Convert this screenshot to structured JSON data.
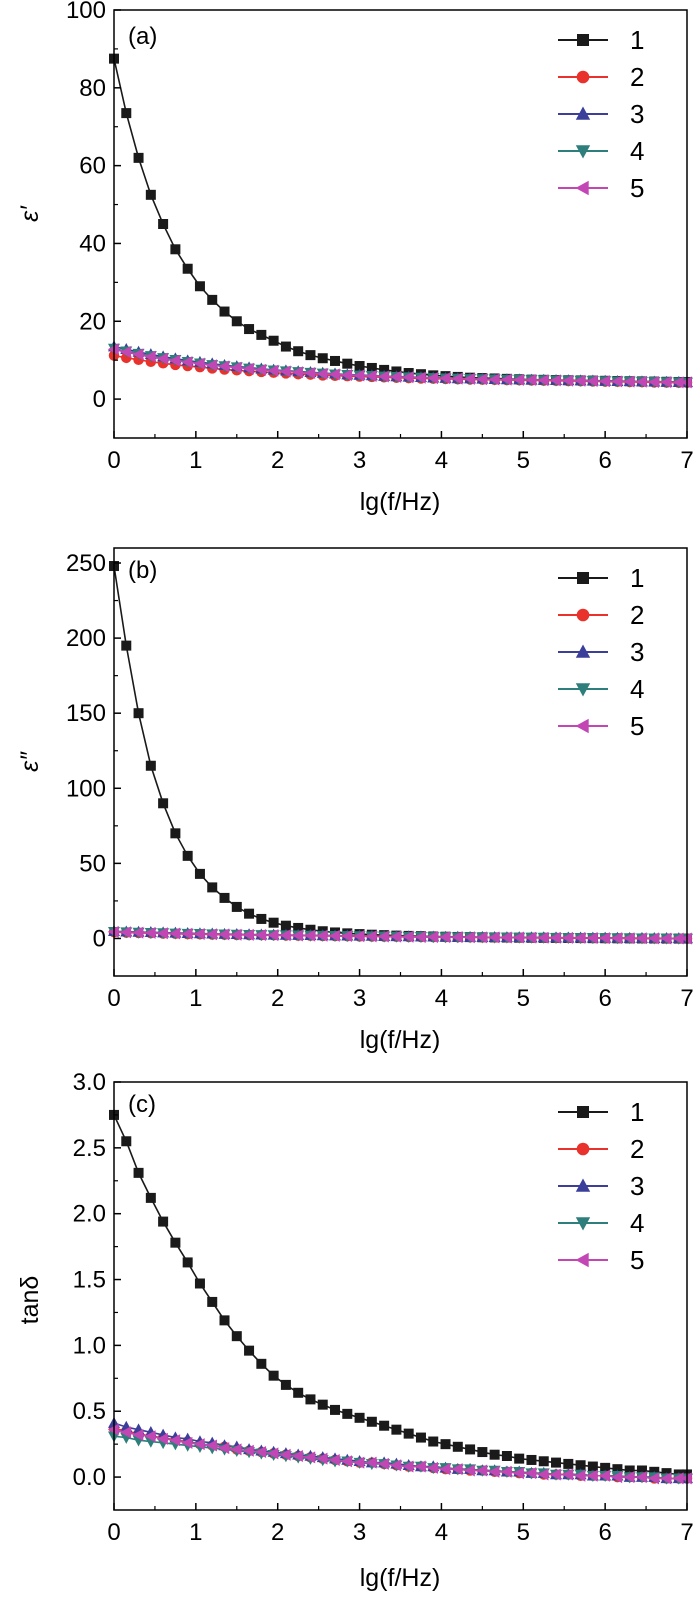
{
  "chart_data": [
    {
      "type": "line",
      "panel": "(a)",
      "xlabel": "lg(f/Hz)",
      "ylabel": "ε′",
      "xlim": [
        0,
        7
      ],
      "ylim": [
        -10,
        100
      ],
      "xticks": [
        0,
        1,
        2,
        3,
        4,
        5,
        6,
        7
      ],
      "yticks": [
        0,
        20,
        40,
        60,
        80,
        100
      ],
      "x": [
        0,
        0.15,
        0.3,
        0.45,
        0.6,
        0.75,
        0.9,
        1.05,
        1.2,
        1.35,
        1.5,
        1.65,
        1.8,
        1.95,
        2.1,
        2.25,
        2.4,
        2.55,
        2.7,
        2.85,
        3.0,
        3.15,
        3.3,
        3.45,
        3.6,
        3.75,
        3.9,
        4.05,
        4.2,
        4.35,
        4.5,
        4.65,
        4.8,
        4.95,
        5.1,
        5.25,
        5.4,
        5.55,
        5.7,
        5.85,
        6.0,
        6.15,
        6.3,
        6.45,
        6.6,
        6.75,
        6.9,
        7.0
      ],
      "legend": [
        "1",
        "2",
        "3",
        "4",
        "5"
      ],
      "series": [
        {
          "name": "1",
          "marker": "square",
          "color": "#1a1a1a",
          "values": [
            87.5,
            73.5,
            62,
            52.5,
            45,
            38.5,
            33.5,
            29,
            25.5,
            22.5,
            20,
            18,
            16.5,
            15,
            13.5,
            12.3,
            11.3,
            10.5,
            9.8,
            9.1,
            8.5,
            8,
            7.5,
            7.1,
            6.7,
            6.4,
            6.1,
            5.9,
            5.7,
            5.5,
            5.4,
            5.3,
            5.2,
            5.1,
            5,
            4.95,
            4.9,
            4.85,
            4.8,
            4.75,
            4.7,
            4.65,
            4.6,
            4.55,
            4.5,
            4.45,
            4.4,
            4.4
          ]
        },
        {
          "name": "2",
          "marker": "circle",
          "color": "#e8322b",
          "values": [
            11.2,
            10.6,
            10.1,
            9.6,
            9.2,
            8.8,
            8.5,
            8.2,
            7.9,
            7.6,
            7.4,
            7.2,
            7,
            6.8,
            6.6,
            6.4,
            6.3,
            6.1,
            6,
            5.9,
            5.8,
            5.7,
            5.6,
            5.5,
            5.4,
            5.3,
            5.25,
            5.2,
            5.1,
            5.05,
            5,
            4.95,
            4.9,
            4.85,
            4.8,
            4.75,
            4.7,
            4.65,
            4.6,
            4.55,
            4.5,
            4.45,
            4.4,
            4.35,
            4.3,
            4.25,
            4.2,
            4.2
          ]
        },
        {
          "name": "3",
          "marker": "triangle-up",
          "color": "#3b3f9a",
          "values": [
            13.5,
            12.8,
            12.1,
            11.5,
            10.9,
            10.4,
            9.9,
            9.5,
            9.1,
            8.7,
            8.4,
            8.1,
            7.8,
            7.5,
            7.3,
            7.1,
            6.9,
            6.7,
            6.5,
            6.3,
            6.2,
            6.05,
            5.9,
            5.8,
            5.7,
            5.6,
            5.5,
            5.4,
            5.3,
            5.25,
            5.2,
            5.1,
            5.05,
            5,
            4.95,
            4.9,
            4.85,
            4.8,
            4.75,
            4.7,
            4.65,
            4.6,
            4.55,
            4.5,
            4.45,
            4.4,
            4.35,
            4.3
          ]
        },
        {
          "name": "4",
          "marker": "triangle-down",
          "color": "#2e7f7b",
          "values": [
            13,
            12.3,
            11.7,
            11.1,
            10.6,
            10.1,
            9.6,
            9.2,
            8.8,
            8.5,
            8.2,
            7.9,
            7.6,
            7.4,
            7.2,
            7,
            6.8,
            6.6,
            6.4,
            6.25,
            6.1,
            6,
            5.85,
            5.75,
            5.65,
            5.55,
            5.45,
            5.35,
            5.3,
            5.2,
            5.15,
            5.1,
            5.05,
            5,
            4.95,
            4.9,
            4.85,
            4.8,
            4.75,
            4.7,
            4.65,
            4.6,
            4.55,
            4.5,
            4.45,
            4.4,
            4.35,
            4.3
          ]
        },
        {
          "name": "5",
          "marker": "triangle-left",
          "color": "#c246b4",
          "values": [
            12.8,
            12.1,
            11.5,
            10.9,
            10.4,
            9.9,
            9.5,
            9.1,
            8.7,
            8.4,
            8.1,
            7.8,
            7.5,
            7.3,
            7.1,
            6.9,
            6.7,
            6.5,
            6.35,
            6.2,
            6.05,
            5.95,
            5.8,
            5.7,
            5.6,
            5.5,
            5.4,
            5.35,
            5.25,
            5.2,
            5.1,
            5.05,
            5,
            4.95,
            4.9,
            4.85,
            4.8,
            4.75,
            4.7,
            4.65,
            4.6,
            4.55,
            4.5,
            4.45,
            4.4,
            4.35,
            4.3,
            4.3
          ]
        }
      ]
    },
    {
      "type": "line",
      "panel": "(b)",
      "xlabel": "lg(f/Hz)",
      "ylabel": "ε″",
      "xlim": [
        0,
        7
      ],
      "ylim": [
        -25,
        260
      ],
      "xticks": [
        0,
        1,
        2,
        3,
        4,
        5,
        6,
        7
      ],
      "yticks": [
        0,
        50,
        100,
        150,
        200,
        250
      ],
      "x": [
        0,
        0.15,
        0.3,
        0.45,
        0.6,
        0.75,
        0.9,
        1.05,
        1.2,
        1.35,
        1.5,
        1.65,
        1.8,
        1.95,
        2.1,
        2.25,
        2.4,
        2.55,
        2.7,
        2.85,
        3.0,
        3.15,
        3.3,
        3.45,
        3.6,
        3.75,
        3.9,
        4.05,
        4.2,
        4.35,
        4.5,
        4.65,
        4.8,
        4.95,
        5.1,
        5.25,
        5.4,
        5.55,
        5.7,
        5.85,
        6.0,
        6.15,
        6.3,
        6.45,
        6.6,
        6.75,
        6.9,
        7.0
      ],
      "legend": [
        "1",
        "2",
        "3",
        "4",
        "5"
      ],
      "series": [
        {
          "name": "1",
          "marker": "square",
          "color": "#1a1a1a",
          "values": [
            248,
            195,
            150,
            115,
            90,
            70,
            55,
            43,
            34,
            27,
            21,
            16.5,
            13,
            10.5,
            8.5,
            7,
            5.8,
            4.8,
            4,
            3.4,
            2.9,
            2.5,
            2.2,
            1.9,
            1.7,
            1.5,
            1.3,
            1.15,
            1,
            0.9,
            0.8,
            0.7,
            0.6,
            0.5,
            0.45,
            0.4,
            0.35,
            0.3,
            0.25,
            0.2,
            0.15,
            0.1,
            0.05,
            0,
            -0.05,
            -0.1,
            -0.1,
            -0.1
          ]
        },
        {
          "name": "2",
          "marker": "circle",
          "color": "#e8322b",
          "values": [
            4.2,
            3.9,
            3.7,
            3.5,
            3.3,
            3.1,
            2.9,
            2.8,
            2.6,
            2.5,
            2.4,
            2.3,
            2.2,
            2.1,
            2,
            1.9,
            1.8,
            1.7,
            1.6,
            1.5,
            1.4,
            1.3,
            1.2,
            1.1,
            1,
            0.95,
            0.9,
            0.85,
            0.8,
            0.75,
            0.7,
            0.65,
            0.6,
            0.55,
            0.5,
            0.45,
            0.4,
            0.35,
            0.3,
            0.25,
            0.2,
            0.15,
            0.1,
            0.05,
            0,
            -0.05,
            -0.1,
            -0.1
          ]
        },
        {
          "name": "3",
          "marker": "triangle-up",
          "color": "#3b3f9a",
          "values": [
            4.8,
            4.5,
            4.3,
            4.1,
            3.9,
            3.7,
            3.5,
            3.3,
            3.1,
            2.9,
            2.8,
            2.6,
            2.5,
            2.4,
            2.3,
            2.2,
            2.1,
            2,
            1.9,
            1.8,
            1.7,
            1.6,
            1.5,
            1.4,
            1.3,
            1.2,
            1.1,
            1,
            0.95,
            0.9,
            0.85,
            0.8,
            0.75,
            0.7,
            0.65,
            0.6,
            0.55,
            0.5,
            0.45,
            0.4,
            0.35,
            0.3,
            0.25,
            0.2,
            0.15,
            0.1,
            0.05,
            0
          ]
        },
        {
          "name": "4",
          "marker": "triangle-down",
          "color": "#2e7f7b",
          "values": [
            4.5,
            4.2,
            4,
            3.8,
            3.6,
            3.4,
            3.2,
            3.1,
            2.9,
            2.8,
            2.6,
            2.5,
            2.4,
            2.3,
            2.2,
            2.1,
            2,
            1.9,
            1.8,
            1.7,
            1.6,
            1.5,
            1.4,
            1.3,
            1.2,
            1.1,
            1,
            0.95,
            0.9,
            0.85,
            0.8,
            0.75,
            0.7,
            0.65,
            0.6,
            0.55,
            0.5,
            0.45,
            0.4,
            0.35,
            0.3,
            0.25,
            0.2,
            0.15,
            0.1,
            0.05,
            0,
            0
          ]
        },
        {
          "name": "5",
          "marker": "triangle-left",
          "color": "#c246b4",
          "values": [
            4.4,
            4.1,
            3.9,
            3.7,
            3.5,
            3.3,
            3.1,
            3,
            2.8,
            2.7,
            2.5,
            2.4,
            2.3,
            2.2,
            2.1,
            2,
            1.9,
            1.8,
            1.7,
            1.6,
            1.5,
            1.4,
            1.3,
            1.2,
            1.1,
            1,
            0.95,
            0.9,
            0.85,
            0.8,
            0.75,
            0.7,
            0.65,
            0.6,
            0.55,
            0.5,
            0.45,
            0.4,
            0.35,
            0.3,
            0.25,
            0.2,
            0.15,
            0.1,
            0.05,
            0,
            -0.05,
            -0.05
          ]
        }
      ]
    },
    {
      "type": "line",
      "panel": "(c)",
      "xlabel": "lg(f/Hz)",
      "ylabel": "tanδ",
      "xlim": [
        0,
        7
      ],
      "ylim": [
        -0.25,
        3.0
      ],
      "xticks": [
        0,
        1,
        2,
        3,
        4,
        5,
        6,
        7
      ],
      "yticks": [
        0.0,
        0.5,
        1.0,
        1.5,
        2.0,
        2.5,
        3.0
      ],
      "x": [
        0,
        0.15,
        0.3,
        0.45,
        0.6,
        0.75,
        0.9,
        1.05,
        1.2,
        1.35,
        1.5,
        1.65,
        1.8,
        1.95,
        2.1,
        2.25,
        2.4,
        2.55,
        2.7,
        2.85,
        3.0,
        3.15,
        3.3,
        3.45,
        3.6,
        3.75,
        3.9,
        4.05,
        4.2,
        4.35,
        4.5,
        4.65,
        4.8,
        4.95,
        5.1,
        5.25,
        5.4,
        5.55,
        5.7,
        5.85,
        6.0,
        6.15,
        6.3,
        6.45,
        6.6,
        6.75,
        6.9,
        7.0
      ],
      "legend": [
        "1",
        "2",
        "3",
        "4",
        "5"
      ],
      "series": [
        {
          "name": "1",
          "marker": "square",
          "color": "#1a1a1a",
          "values": [
            2.75,
            2.55,
            2.31,
            2.12,
            1.94,
            1.78,
            1.63,
            1.47,
            1.33,
            1.19,
            1.07,
            0.96,
            0.86,
            0.77,
            0.7,
            0.64,
            0.59,
            0.55,
            0.51,
            0.48,
            0.45,
            0.42,
            0.39,
            0.36,
            0.33,
            0.3,
            0.27,
            0.25,
            0.23,
            0.21,
            0.19,
            0.17,
            0.16,
            0.14,
            0.13,
            0.12,
            0.11,
            0.1,
            0.09,
            0.08,
            0.07,
            0.06,
            0.05,
            0.05,
            0.04,
            0.03,
            0.02,
            0.02
          ]
        },
        {
          "name": "2",
          "marker": "circle",
          "color": "#e8322b",
          "values": [
            0.37,
            0.35,
            0.33,
            0.31,
            0.3,
            0.28,
            0.27,
            0.25,
            0.24,
            0.23,
            0.21,
            0.2,
            0.19,
            0.18,
            0.17,
            0.16,
            0.15,
            0.14,
            0.13,
            0.12,
            0.11,
            0.11,
            0.1,
            0.09,
            0.08,
            0.08,
            0.07,
            0.06,
            0.06,
            0.05,
            0.05,
            0.04,
            0.04,
            0.03,
            0.03,
            0.02,
            0.02,
            0.02,
            0.01,
            0.01,
            0.01,
            0.0,
            0.0,
            0.0,
            -0.01,
            -0.01,
            -0.01,
            -0.01
          ]
        },
        {
          "name": "3",
          "marker": "triangle-up",
          "color": "#3b3f9a",
          "values": [
            0.41,
            0.38,
            0.36,
            0.34,
            0.32,
            0.3,
            0.29,
            0.27,
            0.26,
            0.24,
            0.23,
            0.21,
            0.2,
            0.19,
            0.18,
            0.17,
            0.16,
            0.15,
            0.14,
            0.13,
            0.12,
            0.11,
            0.11,
            0.1,
            0.09,
            0.08,
            0.08,
            0.07,
            0.06,
            0.06,
            0.05,
            0.05,
            0.04,
            0.04,
            0.03,
            0.03,
            0.02,
            0.02,
            0.02,
            0.01,
            0.01,
            0.01,
            0.0,
            0.0,
            0.0,
            -0.01,
            -0.01,
            -0.01
          ]
        },
        {
          "name": "4",
          "marker": "triangle-down",
          "color": "#2e7f7b",
          "values": [
            0.31,
            0.3,
            0.28,
            0.27,
            0.26,
            0.25,
            0.24,
            0.23,
            0.22,
            0.21,
            0.2,
            0.19,
            0.18,
            0.17,
            0.16,
            0.15,
            0.14,
            0.13,
            0.12,
            0.12,
            0.11,
            0.1,
            0.1,
            0.09,
            0.08,
            0.08,
            0.07,
            0.07,
            0.06,
            0.06,
            0.05,
            0.05,
            0.04,
            0.04,
            0.03,
            0.03,
            0.02,
            0.02,
            0.02,
            0.01,
            0.01,
            0.01,
            0.0,
            0.0,
            0.0,
            -0.01,
            -0.01,
            -0.01
          ]
        },
        {
          "name": "5",
          "marker": "triangle-left",
          "color": "#c246b4",
          "values": [
            0.36,
            0.34,
            0.32,
            0.31,
            0.29,
            0.28,
            0.26,
            0.25,
            0.24,
            0.22,
            0.21,
            0.2,
            0.19,
            0.18,
            0.17,
            0.16,
            0.15,
            0.14,
            0.13,
            0.12,
            0.11,
            0.11,
            0.1,
            0.09,
            0.08,
            0.08,
            0.07,
            0.06,
            0.06,
            0.05,
            0.05,
            0.04,
            0.04,
            0.03,
            0.03,
            0.02,
            0.02,
            0.02,
            0.01,
            0.01,
            0.01,
            0.0,
            0.0,
            0.0,
            -0.01,
            -0.01,
            -0.01,
            -0.01
          ]
        }
      ]
    }
  ]
}
